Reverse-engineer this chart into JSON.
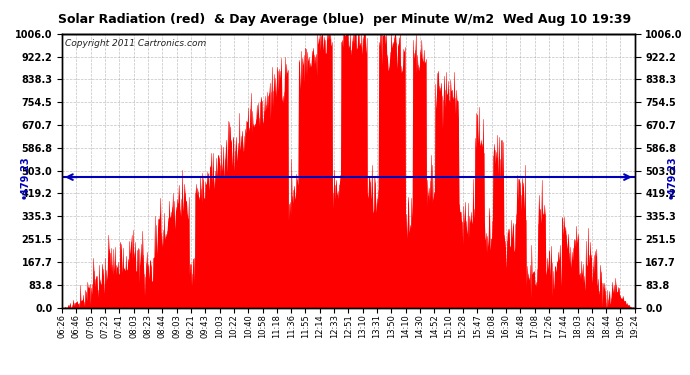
{
  "title": "Solar Radiation (red)  & Day Average (blue)  per Minute W/m2  Wed Aug 10 19:39",
  "copyright_text": "Copyright 2011 Cartronics.com",
  "y_max": 1006.0,
  "y_min": 0.0,
  "y_ticks": [
    0.0,
    83.8,
    167.7,
    251.5,
    335.3,
    419.2,
    503.0,
    586.8,
    670.7,
    754.5,
    838.3,
    922.2,
    1006.0
  ],
  "average_value": 479.23,
  "bar_color": "#FF0000",
  "avg_line_color": "#0000BB",
  "background_color": "#FFFFFF",
  "grid_color": "#999999",
  "x_labels": [
    "06:26",
    "06:46",
    "07:05",
    "07:23",
    "07:41",
    "08:03",
    "08:23",
    "08:44",
    "09:03",
    "09:21",
    "09:43",
    "10:03",
    "10:22",
    "10:40",
    "10:58",
    "11:18",
    "11:36",
    "11:55",
    "12:14",
    "12:33",
    "12:51",
    "13:10",
    "13:31",
    "13:50",
    "14:10",
    "14:30",
    "14:52",
    "15:10",
    "15:28",
    "15:47",
    "16:08",
    "16:30",
    "16:48",
    "17:08",
    "17:26",
    "17:44",
    "18:03",
    "18:25",
    "18:44",
    "19:05",
    "19:24"
  ]
}
